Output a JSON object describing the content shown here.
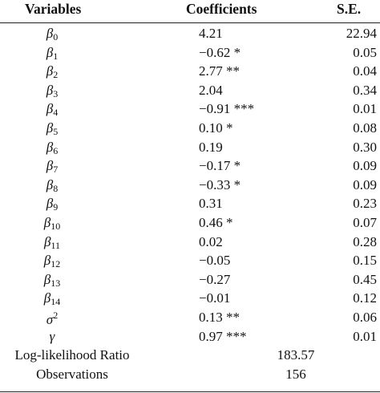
{
  "table": {
    "headers": {
      "variables": "Variables",
      "coefficients": "Coefficients",
      "se": "S.E."
    },
    "rows": [
      {
        "sym": "β",
        "sub": "0",
        "sup": "",
        "coef": "4.21",
        "se": "22.94"
      },
      {
        "sym": "β",
        "sub": "1",
        "sup": "",
        "coef": "−0.62 *",
        "se": "0.05"
      },
      {
        "sym": "β",
        "sub": "2",
        "sup": "",
        "coef": "2.77 **",
        "se": "0.04"
      },
      {
        "sym": "β",
        "sub": "3",
        "sup": "",
        "coef": "2.04",
        "se": "0.34"
      },
      {
        "sym": "β",
        "sub": "4",
        "sup": "",
        "coef": "−0.91 ***",
        "se": "0.01"
      },
      {
        "sym": "β",
        "sub": "5",
        "sup": "",
        "coef": "0.10 *",
        "se": "0.08"
      },
      {
        "sym": "β",
        "sub": "6",
        "sup": "",
        "coef": "0.19",
        "se": "0.30"
      },
      {
        "sym": "β",
        "sub": "7",
        "sup": "",
        "coef": "−0.17 *",
        "se": "0.09"
      },
      {
        "sym": "β",
        "sub": "8",
        "sup": "",
        "coef": "−0.33 *",
        "se": "0.09"
      },
      {
        "sym": "β",
        "sub": "9",
        "sup": "",
        "coef": "0.31",
        "se": "0.23"
      },
      {
        "sym": "β",
        "sub": "10",
        "sup": "",
        "coef": "0.46 *",
        "se": "0.07"
      },
      {
        "sym": "β",
        "sub": "11",
        "sup": "",
        "coef": "0.02",
        "se": "0.28"
      },
      {
        "sym": "β",
        "sub": "12",
        "sup": "",
        "coef": "−0.05",
        "se": "0.15"
      },
      {
        "sym": "β",
        "sub": "13",
        "sup": "",
        "coef": "−0.27",
        "se": "0.45"
      },
      {
        "sym": "β",
        "sub": "14",
        "sup": "",
        "coef": "−0.01",
        "se": "0.12"
      },
      {
        "sym": "σ",
        "sub": "",
        "sup": "2",
        "coef": "0.13 **",
        "se": "0.06"
      },
      {
        "sym": "γ",
        "sub": "",
        "sup": "",
        "coef": "0.97 ***",
        "se": "0.01"
      }
    ],
    "summary": [
      {
        "label": "Log-likelihood Ratio",
        "value": "183.57"
      },
      {
        "label": "Observations",
        "value": "156"
      }
    ]
  }
}
